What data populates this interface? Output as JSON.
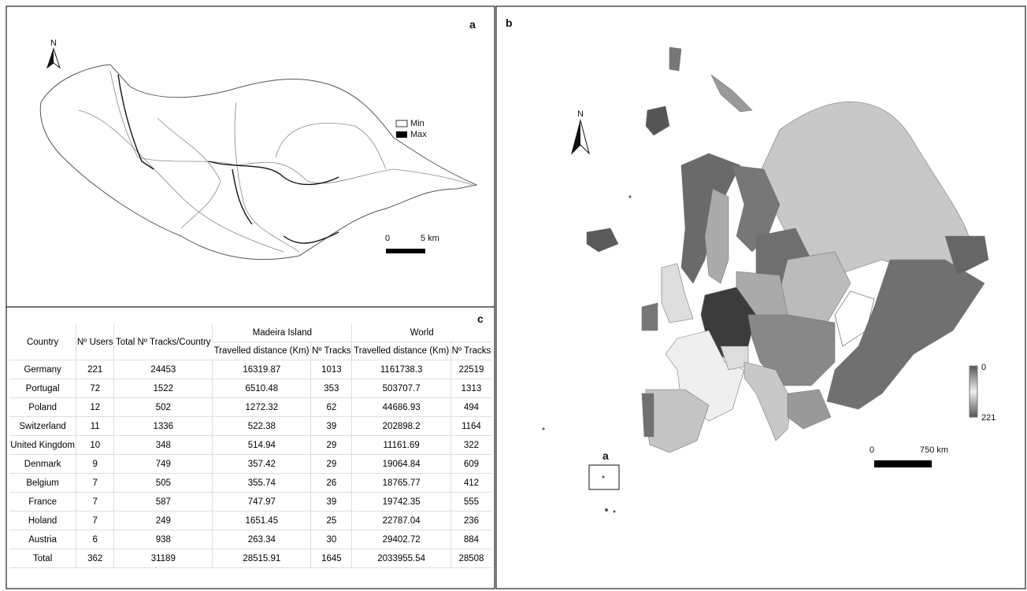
{
  "panel_a": {
    "label": "a",
    "north": "N",
    "legend": {
      "min": "Min",
      "max": "Max"
    },
    "scale": {
      "start": 0,
      "end": "5 km"
    }
  },
  "panel_b": {
    "label": "b",
    "north": "N",
    "legend": {
      "top": 0,
      "bottom": 221
    },
    "scale": {
      "start": 0,
      "end": "750 km"
    },
    "inset_label": "a"
  },
  "panel_c": {
    "label": "c",
    "table": {
      "header": {
        "country": "Country",
        "users": "Nº Users",
        "total_tracks": "Total Nº Tracks/Country",
        "madeira": "Madeira Island",
        "world": "World",
        "madeira_distance": "Travelled distance (Km)",
        "madeira_tracks": "Nº Tracks",
        "world_distance": "Travelled distance (Km)",
        "world_tracks": "Nº Tracks"
      },
      "rows": [
        [
          "Germany",
          221,
          24453,
          16319.87,
          1013,
          1161738.3,
          22519
        ],
        [
          "Portugal",
          72,
          1522,
          6510.48,
          353,
          503707.7,
          1313
        ],
        [
          "Poland",
          12,
          502,
          1272.32,
          62,
          44686.93,
          494
        ],
        [
          "Switzerland",
          11,
          1336,
          522.38,
          39,
          202898.2,
          1164
        ],
        [
          "United Kingdom",
          10,
          348,
          514.94,
          29,
          11161.69,
          322
        ],
        [
          "Denmark",
          9,
          749,
          357.42,
          29,
          19064.84,
          609
        ],
        [
          "Belgium",
          7,
          505,
          355.74,
          26,
          18765.77,
          412
        ],
        [
          "France",
          7,
          587,
          747.97,
          39,
          19742.35,
          555
        ],
        [
          "Holand",
          7,
          249,
          1651.45,
          25,
          22787.04,
          236
        ],
        [
          "Austria",
          6,
          938,
          263.34,
          30,
          29402.72,
          884
        ],
        [
          "Total",
          362,
          31189,
          28515.91,
          1645,
          2033955.54,
          28508
        ]
      ]
    }
  }
}
